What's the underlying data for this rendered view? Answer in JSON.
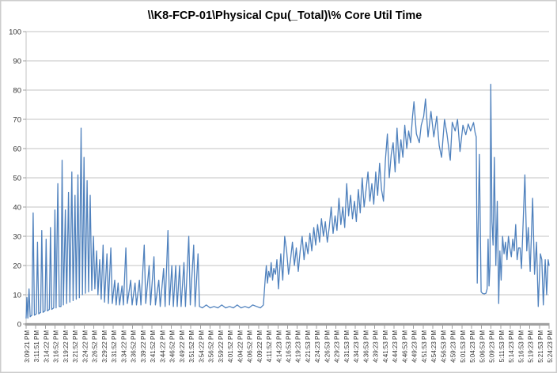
{
  "chart_data": {
    "type": "line",
    "title": "\\\\K8-FCP-01\\Physical Cpu(_Total)\\% Core Util Time",
    "xlabel": "",
    "ylabel": "",
    "legend": "none",
    "grid": "horizontal",
    "y_axis": {
      "min": 0,
      "max": 100,
      "step": 10,
      "tick_labels": [
        "0",
        "10",
        "20",
        "30",
        "40",
        "50",
        "60",
        "70",
        "80",
        "90",
        "100"
      ]
    },
    "categories": [
      "3:09:21 PM",
      "3:11:51 PM",
      "3:14:22 PM",
      "3:16:52 PM",
      "3:19:22 PM",
      "3:21:52 PM",
      "3:24:22 PM",
      "3:26:52 PM",
      "3:29:22 PM",
      "3:31:52 PM",
      "3:34:22 PM",
      "3:36:52 PM",
      "3:39:22 PM",
      "3:41:52 PM",
      "3:44:22 PM",
      "3:46:52 PM",
      "3:49:22 PM",
      "3:51:52 PM",
      "3:54:22 PM",
      "3:56:52 PM",
      "3:59:22 PM",
      "4:01:52 PM",
      "4:04:22 PM",
      "4:06:52 PM",
      "4:09:22 PM",
      "4:11:52 PM",
      "4:14:23 PM",
      "4:16:53 PM",
      "4:19:23 PM",
      "4:21:53 PM",
      "4:24:23 PM",
      "4:26:53 PM",
      "4:29:23 PM",
      "4:31:53 PM",
      "4:34:23 PM",
      "4:36:53 PM",
      "4:39:23 PM",
      "4:41:53 PM",
      "4:44:23 PM",
      "4:46:53 PM",
      "4:49:23 PM",
      "4:51:53 PM",
      "4:54:23 PM",
      "4:56:53 PM",
      "4:59:23 PM",
      "5:01:53 PM",
      "5:04:23 PM",
      "5:06:53 PM",
      "5:09:23 PM",
      "5:11:53 PM",
      "5:14:23 PM",
      "5:16:53 PM",
      "5:19:23 PM",
      "5:21:53 PM",
      "5:24:23 PM"
    ],
    "series": [
      {
        "color": "#4F81BD",
        "x_unit": "category_index",
        "points": [
          [
            0,
            2
          ],
          [
            0.08,
            9
          ],
          [
            0.18,
            2
          ],
          [
            0.3,
            12
          ],
          [
            0.42,
            2.5
          ],
          [
            0.6,
            3
          ],
          [
            0.73,
            38
          ],
          [
            0.86,
            3
          ],
          [
            1.05,
            3.5
          ],
          [
            1.18,
            28
          ],
          [
            1.3,
            3.5
          ],
          [
            1.5,
            4
          ],
          [
            1.62,
            32
          ],
          [
            1.75,
            4
          ],
          [
            1.95,
            4.5
          ],
          [
            2.07,
            29
          ],
          [
            2.2,
            4.5
          ],
          [
            2.4,
            5
          ],
          [
            2.52,
            33
          ],
          [
            2.65,
            5
          ],
          [
            2.85,
            5.5
          ],
          [
            2.97,
            39
          ],
          [
            3.1,
            5.5
          ],
          [
            3.28,
            48
          ],
          [
            3.42,
            6
          ],
          [
            3.6,
            6
          ],
          [
            3.72,
            56
          ],
          [
            3.85,
            6.5
          ],
          [
            4.05,
            39
          ],
          [
            4.18,
            7
          ],
          [
            4.38,
            45
          ],
          [
            4.52,
            7.5
          ],
          [
            4.72,
            52
          ],
          [
            4.85,
            8
          ],
          [
            5.05,
            44
          ],
          [
            5.18,
            8.5
          ],
          [
            5.35,
            51
          ],
          [
            5.5,
            9
          ],
          [
            5.68,
            67
          ],
          [
            5.82,
            10
          ],
          [
            5.98,
            57
          ],
          [
            6.12,
            10.5
          ],
          [
            6.3,
            49
          ],
          [
            6.45,
            11
          ],
          [
            6.62,
            44
          ],
          [
            6.78,
            11.5
          ],
          [
            6.95,
            30
          ],
          [
            7.1,
            12
          ],
          [
            7.28,
            25
          ],
          [
            7.42,
            10
          ],
          [
            7.6,
            22
          ],
          [
            7.75,
            8.5
          ],
          [
            7.95,
            27
          ],
          [
            8.1,
            7.5
          ],
          [
            8.35,
            24
          ],
          [
            8.5,
            7
          ],
          [
            8.75,
            26
          ],
          [
            8.9,
            7
          ],
          [
            9.15,
            15
          ],
          [
            9.3,
            6.5
          ],
          [
            9.5,
            14
          ],
          [
            9.65,
            6.5
          ],
          [
            9.9,
            13
          ],
          [
            10.05,
            6.5
          ],
          [
            10.3,
            26
          ],
          [
            10.45,
            7
          ],
          [
            10.8,
            15
          ],
          [
            10.95,
            6.5
          ],
          [
            11.25,
            14
          ],
          [
            11.4,
            6.5
          ],
          [
            11.7,
            15
          ],
          [
            11.85,
            6.5
          ],
          [
            12.2,
            27
          ],
          [
            12.35,
            7
          ],
          [
            12.7,
            20
          ],
          [
            12.85,
            6.5
          ],
          [
            13.2,
            23
          ],
          [
            13.35,
            6.5
          ],
          [
            13.7,
            15
          ],
          [
            13.85,
            6
          ],
          [
            14.2,
            19
          ],
          [
            14.35,
            6
          ],
          [
            14.65,
            32
          ],
          [
            14.8,
            6.5
          ],
          [
            15.05,
            20
          ],
          [
            15.2,
            6
          ],
          [
            15.45,
            20
          ],
          [
            15.6,
            6
          ],
          [
            15.85,
            20
          ],
          [
            16,
            6
          ],
          [
            16.3,
            21
          ],
          [
            16.45,
            6
          ],
          [
            16.8,
            30
          ],
          [
            16.95,
            6.5
          ],
          [
            17.3,
            27
          ],
          [
            17.45,
            6
          ],
          [
            17.75,
            24
          ],
          [
            17.9,
            6
          ],
          [
            18.2,
            5.5
          ],
          [
            18.6,
            6.5
          ],
          [
            19,
            5.5
          ],
          [
            19.4,
            6
          ],
          [
            19.8,
            5.5
          ],
          [
            20.2,
            6.5
          ],
          [
            20.6,
            5.5
          ],
          [
            21,
            6
          ],
          [
            21.4,
            5.5
          ],
          [
            21.8,
            6.5
          ],
          [
            22.2,
            5.5
          ],
          [
            22.6,
            6
          ],
          [
            23,
            5.5
          ],
          [
            23.4,
            6.5
          ],
          [
            23.8,
            6
          ],
          [
            24.2,
            5.5
          ],
          [
            24.5,
            6.5
          ],
          [
            24.68,
            15
          ],
          [
            24.8,
            20
          ],
          [
            24.92,
            14
          ],
          [
            25.05,
            18
          ],
          [
            25.18,
            16
          ],
          [
            25.3,
            21
          ],
          [
            25.45,
            15
          ],
          [
            25.58,
            19
          ],
          [
            25.75,
            17
          ],
          [
            25.9,
            22
          ],
          [
            26.05,
            12
          ],
          [
            26.3,
            24
          ],
          [
            26.5,
            15
          ],
          [
            26.7,
            30
          ],
          [
            26.9,
            25
          ],
          [
            27.1,
            17
          ],
          [
            27.3,
            22
          ],
          [
            27.5,
            28
          ],
          [
            27.7,
            20
          ],
          [
            27.9,
            26
          ],
          [
            28.1,
            18
          ],
          [
            28.3,
            25
          ],
          [
            28.5,
            30
          ],
          [
            28.7,
            22
          ],
          [
            28.9,
            28
          ],
          [
            29.1,
            24
          ],
          [
            29.3,
            31
          ],
          [
            29.5,
            25
          ],
          [
            29.7,
            33
          ],
          [
            29.9,
            27
          ],
          [
            30.1,
            34
          ],
          [
            30.3,
            28
          ],
          [
            30.5,
            36
          ],
          [
            30.7,
            30
          ],
          [
            30.9,
            35
          ],
          [
            31.1,
            28
          ],
          [
            31.3,
            33
          ],
          [
            31.5,
            40
          ],
          [
            31.7,
            31
          ],
          [
            31.9,
            37
          ],
          [
            32.1,
            32
          ],
          [
            32.3,
            43
          ],
          [
            32.5,
            34
          ],
          [
            32.7,
            40
          ],
          [
            32.9,
            33
          ],
          [
            33.1,
            48
          ],
          [
            33.3,
            37
          ],
          [
            33.5,
            44
          ],
          [
            33.7,
            36
          ],
          [
            33.9,
            42
          ],
          [
            34.1,
            35
          ],
          [
            34.3,
            46
          ],
          [
            34.5,
            38
          ],
          [
            34.7,
            50
          ],
          [
            34.9,
            40
          ],
          [
            35.1,
            46
          ],
          [
            35.3,
            52
          ],
          [
            35.5,
            42
          ],
          [
            35.7,
            48
          ],
          [
            35.9,
            41
          ],
          [
            36.1,
            52
          ],
          [
            36.3,
            44
          ],
          [
            36.5,
            55
          ],
          [
            36.7,
            46
          ],
          [
            36.9,
            42
          ],
          [
            37.1,
            56
          ],
          [
            37.3,
            65
          ],
          [
            37.5,
            50
          ],
          [
            37.7,
            58
          ],
          [
            37.9,
            62
          ],
          [
            38.1,
            52
          ],
          [
            38.3,
            67
          ],
          [
            38.5,
            55
          ],
          [
            38.7,
            63
          ],
          [
            38.9,
            57
          ],
          [
            39.1,
            68
          ],
          [
            39.3,
            60
          ],
          [
            39.5,
            66
          ],
          [
            39.7,
            62
          ],
          [
            39.9,
            71
          ],
          [
            40.05,
            76
          ],
          [
            40.3,
            65
          ],
          [
            40.6,
            62
          ],
          [
            40.8,
            68
          ],
          [
            41.05,
            71
          ],
          [
            41.24,
            77
          ],
          [
            41.5,
            64
          ],
          [
            41.8,
            72.7
          ],
          [
            42.1,
            64
          ],
          [
            42.4,
            71
          ],
          [
            42.65,
            61
          ],
          [
            42.9,
            57
          ],
          [
            43.2,
            70
          ],
          [
            43.45,
            65
          ],
          [
            43.8,
            56
          ],
          [
            44,
            69
          ],
          [
            44.3,
            66
          ],
          [
            44.55,
            70
          ],
          [
            44.8,
            59
          ],
          [
            45.1,
            68
          ],
          [
            45.4,
            64.7
          ],
          [
            45.65,
            68.4
          ],
          [
            45.9,
            66
          ],
          [
            46.2,
            68.9
          ],
          [
            46.35,
            65.6
          ],
          [
            46.48,
            64
          ],
          [
            46.58,
            14
          ],
          [
            46.8,
            58
          ],
          [
            46.98,
            11
          ],
          [
            47.15,
            10.4
          ],
          [
            47.32,
            10.3
          ],
          [
            47.48,
            10.5
          ],
          [
            47.6,
            12
          ],
          [
            47.7,
            29
          ],
          [
            47.8,
            13
          ],
          [
            47.9,
            20
          ],
          [
            47.98,
            82
          ],
          [
            48.1,
            35
          ],
          [
            48.22,
            27
          ],
          [
            48.35,
            57
          ],
          [
            48.5,
            20
          ],
          [
            48.65,
            42
          ],
          [
            48.8,
            7
          ],
          [
            48.92,
            25
          ],
          [
            49.05,
            15
          ],
          [
            49.2,
            30
          ],
          [
            49.35,
            24
          ],
          [
            49.5,
            28
          ],
          [
            49.65,
            22
          ],
          [
            49.8,
            30
          ],
          [
            49.95,
            26
          ],
          [
            50.1,
            23
          ],
          [
            50.25,
            29
          ],
          [
            50.4,
            25
          ],
          [
            50.55,
            34
          ],
          [
            50.7,
            22
          ],
          [
            50.85,
            26
          ],
          [
            51,
            26
          ],
          [
            51.15,
            19
          ],
          [
            51.5,
            51
          ],
          [
            51.7,
            25
          ],
          [
            51.85,
            33
          ],
          [
            52.05,
            18
          ],
          [
            52.3,
            43
          ],
          [
            52.5,
            17
          ],
          [
            52.7,
            28
          ],
          [
            52.88,
            6
          ],
          [
            53.1,
            24
          ],
          [
            53.25,
            22
          ],
          [
            53.4,
            6.5
          ],
          [
            53.6,
            22
          ],
          [
            53.75,
            10
          ],
          [
            53.9,
            22
          ],
          [
            54,
            20
          ]
        ]
      }
    ]
  }
}
